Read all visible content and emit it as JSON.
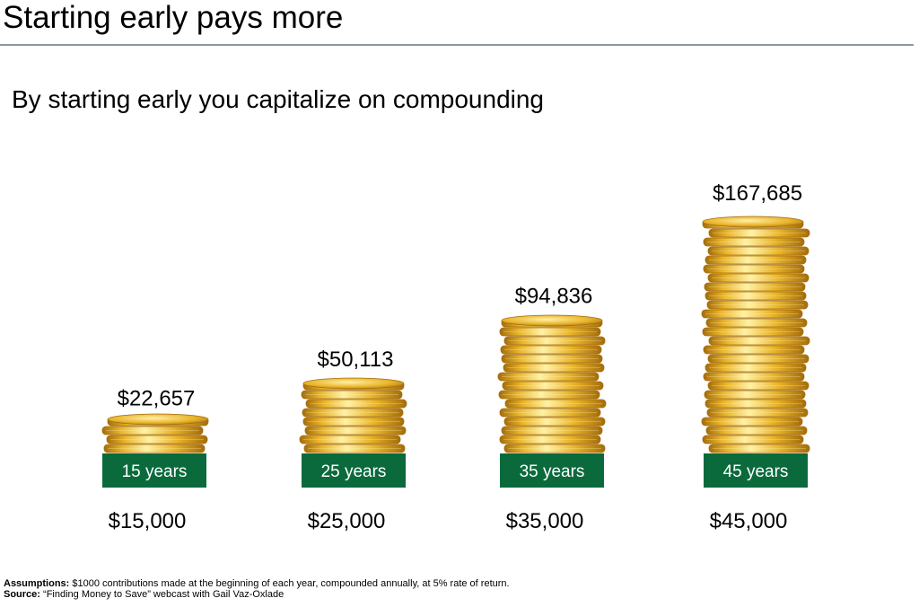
{
  "slide": {
    "title": "Starting early pays more",
    "subtitle": "By starting early you capitalize on compounding"
  },
  "colors": {
    "label_box": "#0b6a3c",
    "coin_gold": "#e9b42b",
    "coin_highlight": "#fff1a6",
    "coin_shadow": "#a46d0c",
    "rule": "#8f979d"
  },
  "chart_data": {
    "type": "bar",
    "style": "stacked gold coins",
    "categories": [
      "15 years",
      "25 years",
      "35 years",
      "45 years"
    ],
    "series": [
      {
        "values": [
          22657,
          50113,
          94836,
          167685
        ],
        "labels": [
          "$22,657",
          "$50,113",
          "$94,836",
          "$167,685"
        ]
      }
    ],
    "contributions": [
      "$15,000",
      "$25,000",
      "$35,000",
      "$45,000"
    ]
  },
  "footnotes": {
    "assumptions_label": "Assumptions:",
    "assumptions_text": "  $1000 contributions made at the beginning of each year, compounded annually, at 5% rate of return.",
    "source_label": "Source:",
    "source_text": " “Finding Money to Save” webcast with Gail Vaz-Oxlade"
  }
}
